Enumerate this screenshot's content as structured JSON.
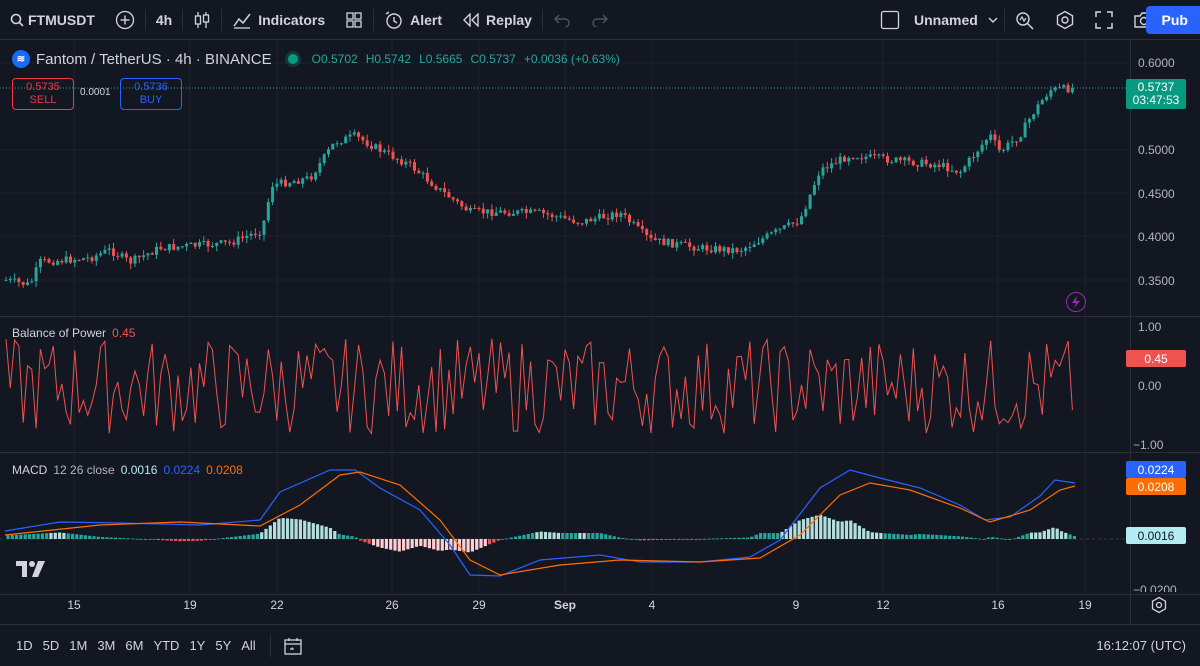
{
  "toolbar": {
    "symbol": "FTMUSDT",
    "interval": "4h",
    "indicators_label": "Indicators",
    "alert_label": "Alert",
    "replay_label": "Replay",
    "layout_name": "Unnamed",
    "publish_label": "Pub"
  },
  "legend": {
    "title": "Fantom / TetherUS · 4h · BINANCE",
    "icon_text": "≋",
    "open": "O0.5702",
    "high": "H0.5742",
    "low": "L0.5665",
    "close": "C0.5737",
    "change": "+0.0036 (+0.63%)"
  },
  "trade": {
    "sell_price": "0.5735",
    "sell_label": "SELL",
    "spread": "0.0001",
    "buy_price": "0.5736",
    "buy_label": "BUY"
  },
  "price_axis": {
    "labels": [
      "0.6000",
      "0.5000",
      "0.4500",
      "0.4000",
      "0.3500"
    ],
    "last_price": "0.5737",
    "countdown": "03:47:53"
  },
  "bop": {
    "title": "Balance of Power",
    "value": "0.45",
    "axis": [
      "1.00",
      "0.00",
      "−1.00"
    ],
    "tag": "0.45"
  },
  "macd": {
    "title": "MACD",
    "params": "12 26 close",
    "hist": "0.0016",
    "macd": "0.0224",
    "signal": "0.0208",
    "axis_bottom": "−0.0200",
    "tag_macd": "0.0224",
    "tag_signal": "0.0208",
    "tag_hist": "0.0016"
  },
  "dates": [
    "15",
    "19",
    "22",
    "26",
    "29",
    "Sep",
    "4",
    "9",
    "12",
    "16",
    "19"
  ],
  "ranges": [
    "1D",
    "5D",
    "1M",
    "3M",
    "6M",
    "YTD",
    "1Y",
    "5Y",
    "All"
  ],
  "clock": "16:12:07 (UTC)",
  "colors": {
    "background": "#131722",
    "up": "#26a69a",
    "down": "#ef5350",
    "macd_line": "#2962ff",
    "signal_line": "#ff6d00",
    "bop_line": "#ef5350"
  }
}
